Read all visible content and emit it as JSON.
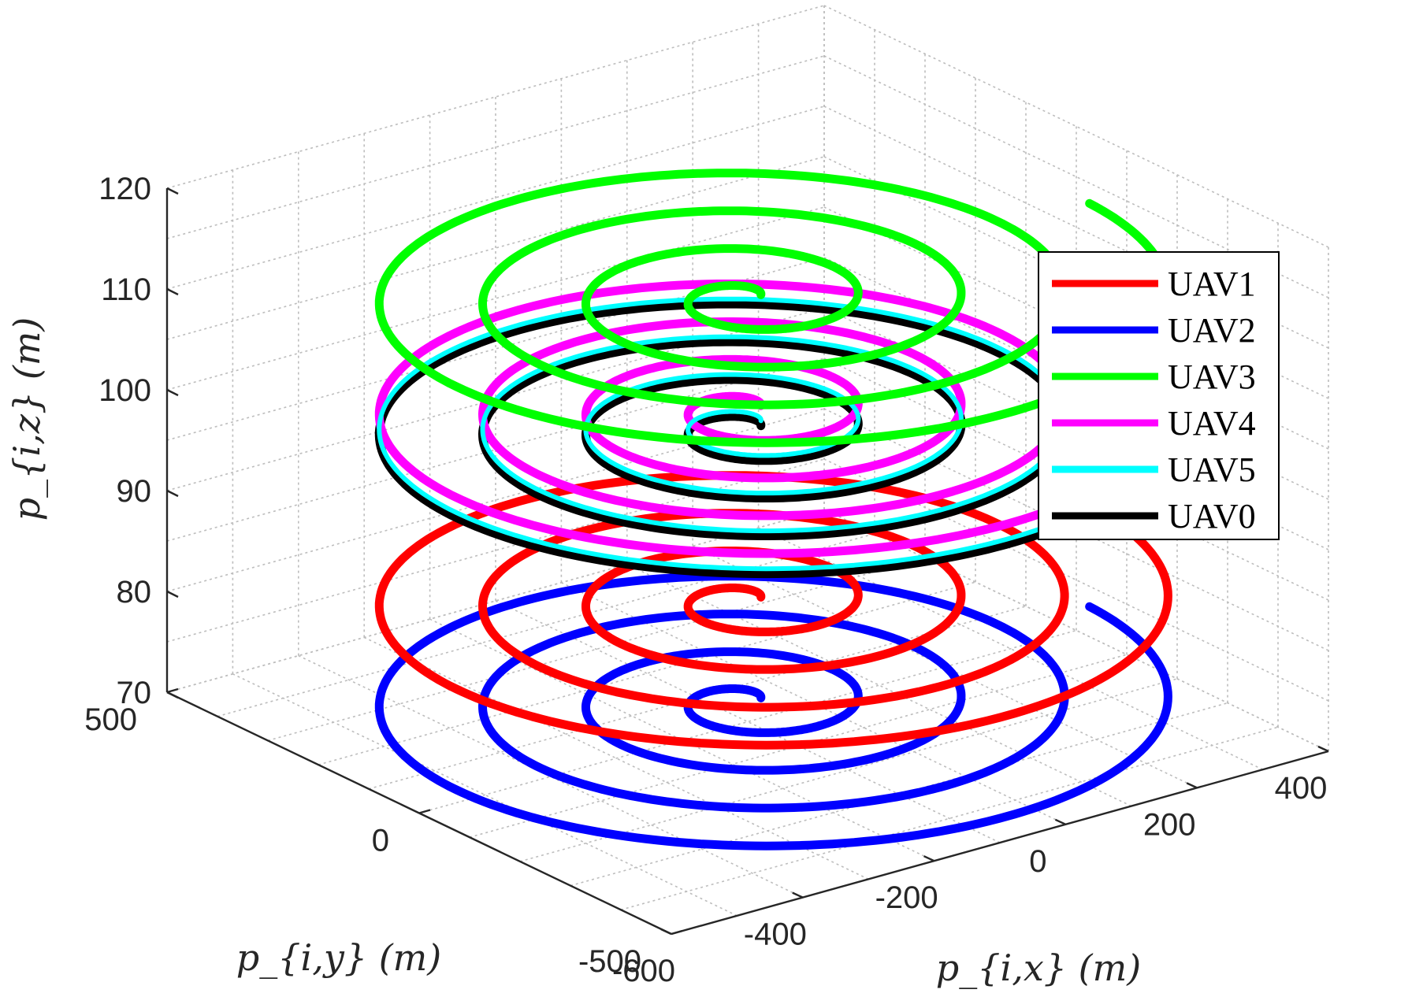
{
  "chart_data": {
    "type": "line",
    "projection": "3d",
    "xlabel": "p_{i,x} (m)",
    "ylabel": "p_{i,y} (m)",
    "zlabel": "p_{i,z} (m)",
    "x_ticks": [
      "-600",
      "-400",
      "-200",
      "0",
      "200",
      "400"
    ],
    "y_ticks": [
      "-500",
      "0",
      "500"
    ],
    "z_ticks": [
      "70",
      "80",
      "90",
      "100",
      "110",
      "120"
    ],
    "xlim": [
      -600,
      400
    ],
    "ylim": [
      -500,
      500
    ],
    "zlim": [
      70,
      120
    ],
    "grid": true,
    "legend_position": "right",
    "spiral": {
      "center_x": -100,
      "center_y": 0,
      "inner_radius": 20,
      "outer_radius": 520,
      "turns": 4
    },
    "series": [
      {
        "name": "UAV1",
        "color": "#ff0000",
        "z": 82
      },
      {
        "name": "UAV2",
        "color": "#0000ff",
        "z": 72
      },
      {
        "name": "UAV3",
        "color": "#00ff00",
        "z": 112
      },
      {
        "name": "UAV4",
        "color": "#ff00ff",
        "z": 101
      },
      {
        "name": "UAV5",
        "color": "#00ffff",
        "z": 99.5
      },
      {
        "name": "UAV0",
        "color": "#000000",
        "z": 99
      }
    ]
  }
}
